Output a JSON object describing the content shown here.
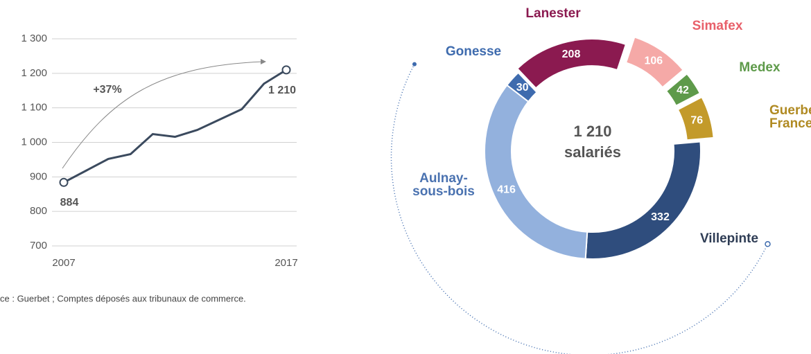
{
  "chart_data": [
    {
      "type": "line",
      "x": [
        2007,
        2008,
        2009,
        2010,
        2011,
        2012,
        2013,
        2014,
        2015,
        2016,
        2017
      ],
      "series": [
        {
          "color": "#3b4a5e",
          "values": [
            884,
            918,
            952,
            966,
            1024,
            1016,
            1036,
            1066,
            1096,
            1170,
            1210
          ]
        }
      ],
      "xlim": [
        2007,
        2017
      ],
      "xticks": [
        2007,
        2017
      ],
      "ylim": [
        700,
        1300
      ],
      "yticks": [
        700,
        800,
        900,
        {
          "value": 1000,
          "label": "1 000"
        },
        {
          "value": 1100,
          "label": "1 100"
        },
        {
          "value": 1200,
          "label": "1 200"
        },
        {
          "value": 1300,
          "label": "1 300"
        }
      ],
      "grid": true,
      "annotations": [
        "+37%",
        "884",
        "1 210"
      ],
      "source": "ce : Guerbet ; Comptes déposés aux tribunaux de commerce."
    },
    {
      "type": "donut",
      "categories": [
        "Lanester",
        "Simafex",
        "Medex",
        "Guerbet\nFrance",
        "Villepinte",
        "Aulnay-\nsous-bois",
        "Gonesse"
      ],
      "values": [
        208,
        106,
        42,
        76,
        332,
        416,
        30
      ],
      "colors": [
        "#8b1a50",
        "#f5a9a7",
        "#5e9a4a",
        "#c39a2a",
        "#2f4d7d",
        "#93b1dd",
        "#3e6bae"
      ],
      "label_colors": [
        "#8b1a50",
        "#e8606a",
        "#5e9a4a",
        "#b08a22",
        "#2f3d55",
        "#4a72b0",
        "#3e6bae"
      ],
      "center_text": [
        "1 210",
        "salariés"
      ]
    }
  ]
}
